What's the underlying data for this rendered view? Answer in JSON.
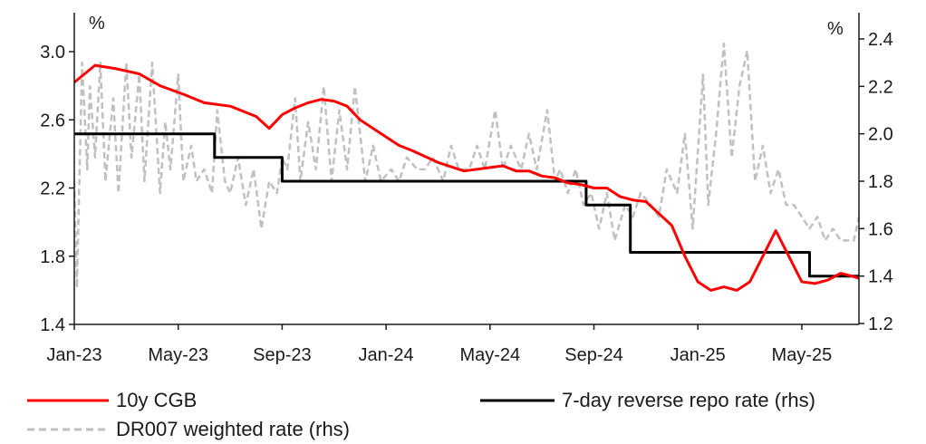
{
  "chart_data": {
    "type": "line",
    "title": "",
    "left_axis": {
      "unit_label": "%",
      "ylim": [
        1.4,
        3.2
      ],
      "ticks": [
        "1.4",
        "1.8",
        "2.2",
        "2.6",
        "3.0"
      ]
    },
    "right_axis": {
      "unit_label": "%",
      "ylim": [
        1.2,
        2.5
      ],
      "ticks": [
        "1.2",
        "1.4",
        "1.6",
        "1.8",
        "2.0",
        "2.2",
        "2.4"
      ]
    },
    "x_axis": {
      "range_months": [
        0,
        30.2
      ],
      "tick_labels": [
        "Jan-23",
        "May-23",
        "Sep-23",
        "Jan-24",
        "May-24",
        "Sep-24",
        "Jan-25",
        "May-25"
      ],
      "tick_months": [
        0,
        4,
        8,
        12,
        16,
        20,
        24,
        28
      ]
    },
    "grid": false,
    "legend_position": "bottom",
    "colors": {
      "cgb": "#ff0000",
      "repo": "#000000",
      "dr007": "#c0c0c0"
    },
    "series": [
      {
        "name": "10y CGB",
        "axis": "left",
        "x_months": [
          0,
          0.8,
          1.6,
          2.5,
          3.3,
          4.2,
          5,
          6,
          7,
          7.5,
          8,
          8.5,
          9,
          9.5,
          10,
          10.5,
          11,
          11.5,
          12,
          12.5,
          13,
          14,
          15,
          16,
          16.5,
          17,
          17.5,
          18,
          18.5,
          19,
          19.5,
          20,
          20.5,
          21,
          21.5,
          22,
          22.5,
          23,
          23.5,
          24,
          24.5,
          25,
          25.5,
          26,
          26.5,
          27,
          27.5,
          28,
          28.5,
          29,
          29.5,
          30,
          30.2
        ],
        "values": [
          2.82,
          2.92,
          2.9,
          2.87,
          2.8,
          2.75,
          2.7,
          2.68,
          2.62,
          2.55,
          2.63,
          2.67,
          2.7,
          2.72,
          2.71,
          2.68,
          2.6,
          2.55,
          2.5,
          2.45,
          2.42,
          2.35,
          2.3,
          2.32,
          2.33,
          2.3,
          2.3,
          2.27,
          2.26,
          2.23,
          2.22,
          2.2,
          2.2,
          2.15,
          2.13,
          2.12,
          2.05,
          1.98,
          1.8,
          1.65,
          1.6,
          1.62,
          1.6,
          1.65,
          1.8,
          1.95,
          1.8,
          1.65,
          1.64,
          1.66,
          1.7,
          1.68,
          1.67
        ]
      },
      {
        "name": "7-day reverse repo rate (rhs)",
        "axis": "right",
        "step": true,
        "x_months": [
          0,
          5.4,
          6.6,
          8,
          18.8,
          19.7,
          21.4,
          28.3,
          30.2
        ],
        "values": [
          2.0,
          1.9,
          1.9,
          1.8,
          1.8,
          1.7,
          1.5,
          1.4,
          1.4
        ]
      },
      {
        "name": "DR007 weighted rate (rhs)",
        "axis": "right",
        "dashed": true,
        "x_months": [
          0,
          0.1,
          0.3,
          0.5,
          0.6,
          0.8,
          1,
          1.2,
          1.5,
          1.7,
          2,
          2.2,
          2.5,
          2.7,
          3,
          3.3,
          3.5,
          3.7,
          4,
          4.2,
          4.5,
          4.7,
          5,
          5.3,
          5.5,
          5.8,
          6,
          6.3,
          6.6,
          6.9,
          7.2,
          7.5,
          7.8,
          8,
          8.2,
          8.5,
          8.7,
          9,
          9.3,
          9.6,
          9.9,
          10.2,
          10.5,
          10.8,
          11.2,
          11.5,
          11.8,
          12.2,
          12.5,
          12.8,
          13.2,
          13.5,
          13.8,
          14.2,
          14.5,
          14.8,
          15.2,
          15.5,
          15.8,
          16.2,
          16.5,
          16.8,
          17.2,
          17.5,
          17.8,
          18.2,
          18.5,
          18.7,
          19,
          19.3,
          19.6,
          19.9,
          20.2,
          20.5,
          20.8,
          21.2,
          21.5,
          21.8,
          22.2,
          22.5,
          22.8,
          23.2,
          23.5,
          23.8,
          24.2,
          24.4,
          24.7,
          25,
          25.3,
          25.6,
          25.9,
          26.2,
          26.5,
          26.8,
          27.1,
          27.4,
          27.7,
          28,
          28.3,
          28.6,
          28.9,
          29.2,
          29.5,
          29.8,
          30,
          30.2
        ],
        "values": [
          1.8,
          1.35,
          2.3,
          1.85,
          2.2,
          1.9,
          2.3,
          1.8,
          2.15,
          1.75,
          2.3,
          1.9,
          2.25,
          1.8,
          2.3,
          1.75,
          2.05,
          1.85,
          2.25,
          1.8,
          1.95,
          1.8,
          1.85,
          1.75,
          2.1,
          1.8,
          1.75,
          1.9,
          1.7,
          1.85,
          1.6,
          1.8,
          1.75,
          1.9,
          1.85,
          2.15,
          1.8,
          2.05,
          1.85,
          2.2,
          1.8,
          2.1,
          1.85,
          2.2,
          1.8,
          1.95,
          1.8,
          1.85,
          1.8,
          1.9,
          1.85,
          1.85,
          1.9,
          1.8,
          1.95,
          1.85,
          1.85,
          1.95,
          1.85,
          2.1,
          1.85,
          1.95,
          1.85,
          2.0,
          1.85,
          2.1,
          1.8,
          1.85,
          1.75,
          1.85,
          1.7,
          1.75,
          1.6,
          1.75,
          1.55,
          1.7,
          1.65,
          1.75,
          1.7,
          1.65,
          1.85,
          1.75,
          2.0,
          1.6,
          2.25,
          1.7,
          2.0,
          2.38,
          1.9,
          2.2,
          2.35,
          1.8,
          1.95,
          1.75,
          1.85,
          1.7,
          1.7,
          1.65,
          1.6,
          1.65,
          1.55,
          1.6,
          1.55,
          1.55,
          1.55,
          1.65
        ]
      }
    ]
  }
}
